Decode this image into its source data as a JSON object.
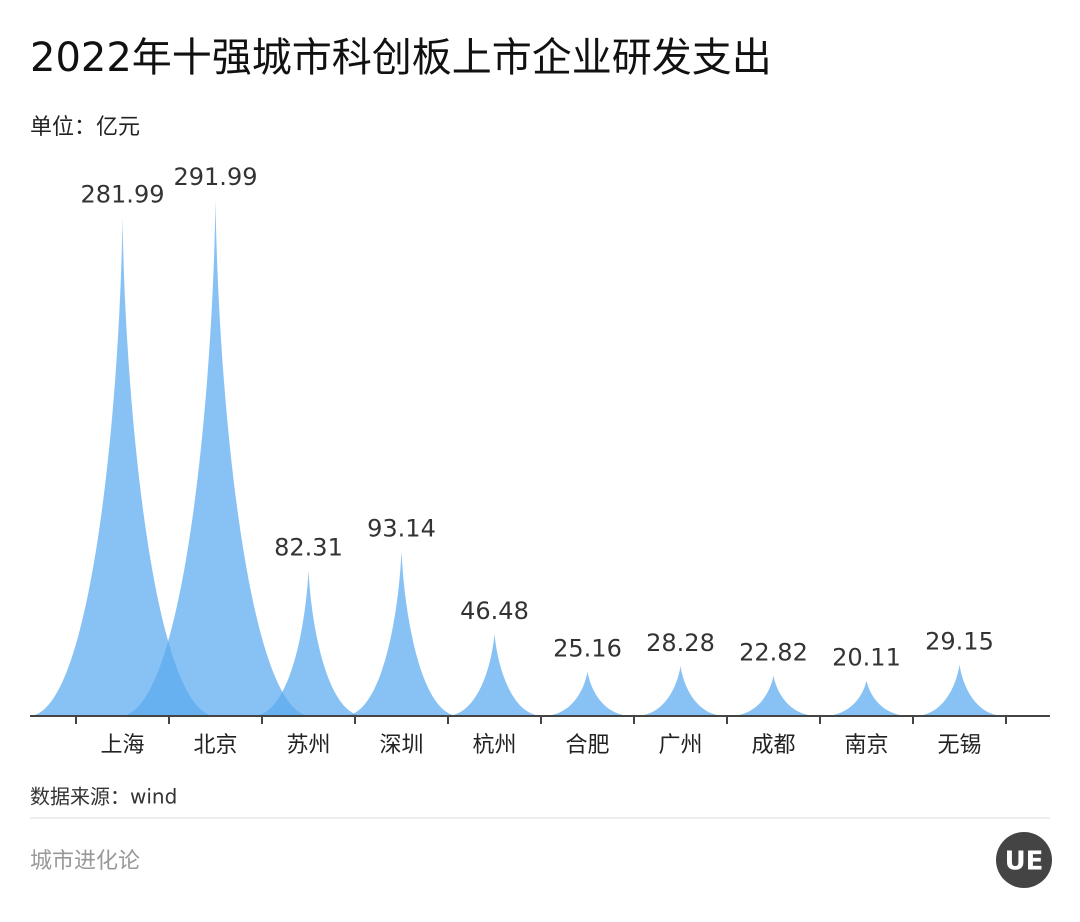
{
  "chart_data": {
    "type": "spike",
    "title": "2022年十强城市科创板上市企业研发支出",
    "subtitle": "单位：亿元",
    "categories": [
      "上海",
      "北京",
      "苏州",
      "深圳",
      "杭州",
      "合肥",
      "广州",
      "成都",
      "南京",
      "无锡"
    ],
    "values": [
      281.99,
      291.99,
      82.31,
      93.14,
      46.48,
      25.16,
      28.28,
      22.82,
      20.11,
      29.15
    ],
    "color": "#5aaaf0",
    "source": "数据来源：wind",
    "brand": "城市进化论",
    "logo": "UE"
  }
}
